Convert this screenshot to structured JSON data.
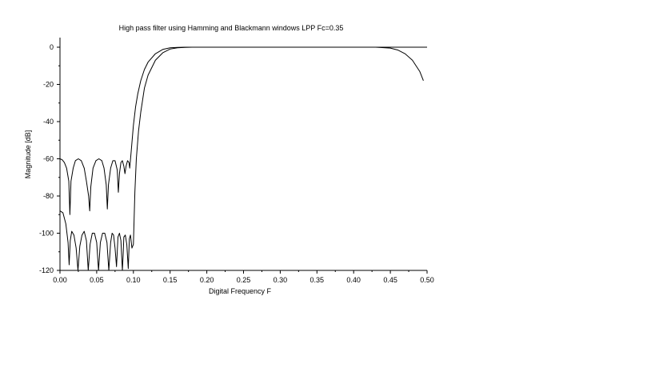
{
  "chart_data": {
    "type": "line",
    "title": "High pass filter using Hamming and Blackmann windows LPP Fc=0.35",
    "xlabel": "Digital Frequency F",
    "ylabel": "Magnitude [dB]",
    "xlim": [
      0,
      0.5
    ],
    "ylim": [
      -120,
      0
    ],
    "x_ticks": [
      "0.00",
      "0.05",
      "0.10",
      "0.15",
      "0.20",
      "0.25",
      "0.30",
      "0.35",
      "0.40",
      "0.45",
      "0.50"
    ],
    "y_ticks": [
      "0",
      "-20",
      "-40",
      "-60",
      "-80",
      "-100",
      "-120"
    ],
    "grid": false,
    "line_color": "#000000",
    "series": [
      {
        "x": [
          0.0,
          0.003,
          0.006,
          0.009,
          0.012,
          0.0135,
          0.015,
          0.018,
          0.021,
          0.025,
          0.029,
          0.033,
          0.036,
          0.039,
          0.0405,
          0.042,
          0.045,
          0.049,
          0.053,
          0.057,
          0.06,
          0.063,
          0.0645,
          0.066,
          0.069,
          0.072,
          0.075,
          0.078,
          0.0795,
          0.081,
          0.083,
          0.085,
          0.087,
          0.0885,
          0.09,
          0.092,
          0.094,
          0.095,
          0.097,
          0.1,
          0.103,
          0.106,
          0.11,
          0.115,
          0.12,
          0.13,
          0.14,
          0.15,
          0.16,
          0.17,
          0.18,
          0.19,
          0.2,
          0.25,
          0.3,
          0.35,
          0.4,
          0.45,
          0.5
        ],
        "y": [
          -60,
          -60.5,
          -62,
          -65,
          -72,
          -90,
          -72,
          -65,
          -61,
          -60,
          -61,
          -65,
          -72,
          -80,
          -88,
          -75,
          -65,
          -61,
          -60,
          -61,
          -65,
          -74,
          -87,
          -74,
          -65,
          -61,
          -61,
          -66,
          -78,
          -68,
          -62,
          -61,
          -64,
          -68,
          -64,
          -61,
          -62,
          -65,
          -56,
          -42,
          -32,
          -25,
          -18,
          -12,
          -8,
          -3.5,
          -1.2,
          -0.3,
          -0.1,
          0,
          0,
          0,
          0,
          0,
          0,
          0,
          0,
          0,
          0
        ]
      },
      {
        "x": [
          0.0,
          0.004,
          0.008,
          0.011,
          0.0125,
          0.014,
          0.016,
          0.019,
          0.022,
          0.0245,
          0.027,
          0.03,
          0.033,
          0.036,
          0.0385,
          0.041,
          0.044,
          0.047,
          0.05,
          0.0525,
          0.055,
          0.058,
          0.061,
          0.064,
          0.0665,
          0.069,
          0.071,
          0.073,
          0.075,
          0.077,
          0.079,
          0.081,
          0.083,
          0.085,
          0.086,
          0.087,
          0.089,
          0.091,
          0.093,
          0.0945,
          0.096,
          0.098,
          0.1,
          0.101,
          0.102,
          0.104,
          0.107,
          0.11,
          0.115,
          0.12,
          0.13,
          0.14,
          0.15,
          0.16,
          0.17,
          0.18,
          0.19,
          0.2,
          0.25,
          0.3,
          0.35,
          0.4,
          0.43,
          0.45,
          0.46,
          0.47,
          0.48,
          0.49,
          0.495
        ],
        "y": [
          -88,
          -89,
          -95,
          -105,
          -117,
          -104,
          -99,
          -101,
          -108,
          -120,
          -107,
          -101,
          -99,
          -104,
          -120,
          -106,
          -100,
          -100,
          -105,
          -120,
          -105,
          -100,
          -100,
          -105,
          -120,
          -105,
          -100,
          -101,
          -108,
          -118,
          -102,
          -100,
          -104,
          -120,
          -112,
          -102,
          -101,
          -106,
          -119,
          -103,
          -101,
          -108,
          -106,
          -92,
          -78,
          -60,
          -45,
          -35,
          -22,
          -15,
          -7,
          -3,
          -1,
          -0.3,
          -0.1,
          0,
          0,
          0,
          0,
          0,
          0,
          0,
          0,
          -0.5,
          -1.5,
          -3.5,
          -7,
          -13,
          -18
        ]
      }
    ]
  }
}
